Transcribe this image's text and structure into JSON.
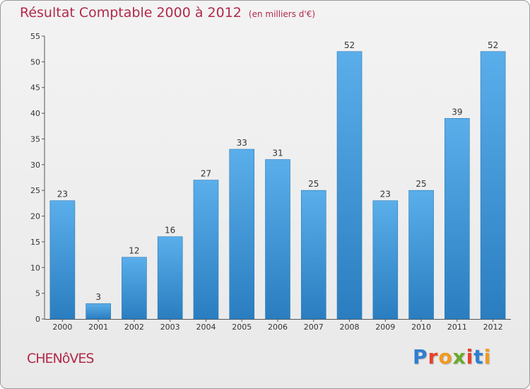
{
  "title": "Résultat Comptable 2000 à 2012",
  "unit_note": "(en milliers d'€)",
  "commune": "CHENôVES",
  "logo": {
    "text": "Proxiti",
    "colors": [
      "#2f7fd0",
      "#e8402a",
      "#f29a1e",
      "#6aab2a",
      "#e8402a",
      "#2f7fd0",
      "#f29a1e"
    ]
  },
  "colors": {
    "bar_light": "#5aaeea",
    "bar_dark": "#2a7ec0",
    "title": "#b1294a"
  },
  "chart_data": {
    "type": "bar",
    "title": "Résultat Comptable 2000 à 2012",
    "xlabel": "",
    "ylabel": "",
    "categories": [
      "2000",
      "2001",
      "2002",
      "2003",
      "2004",
      "2005",
      "2006",
      "2007",
      "2008",
      "2009",
      "2010",
      "2011",
      "2012"
    ],
    "values": [
      23,
      3,
      12,
      16,
      27,
      33,
      31,
      25,
      52,
      23,
      25,
      39,
      52
    ],
    "ylim": [
      0,
      55
    ],
    "yticks": [
      0,
      5,
      10,
      15,
      20,
      25,
      30,
      35,
      40,
      45,
      50,
      55
    ],
    "grid": false
  }
}
